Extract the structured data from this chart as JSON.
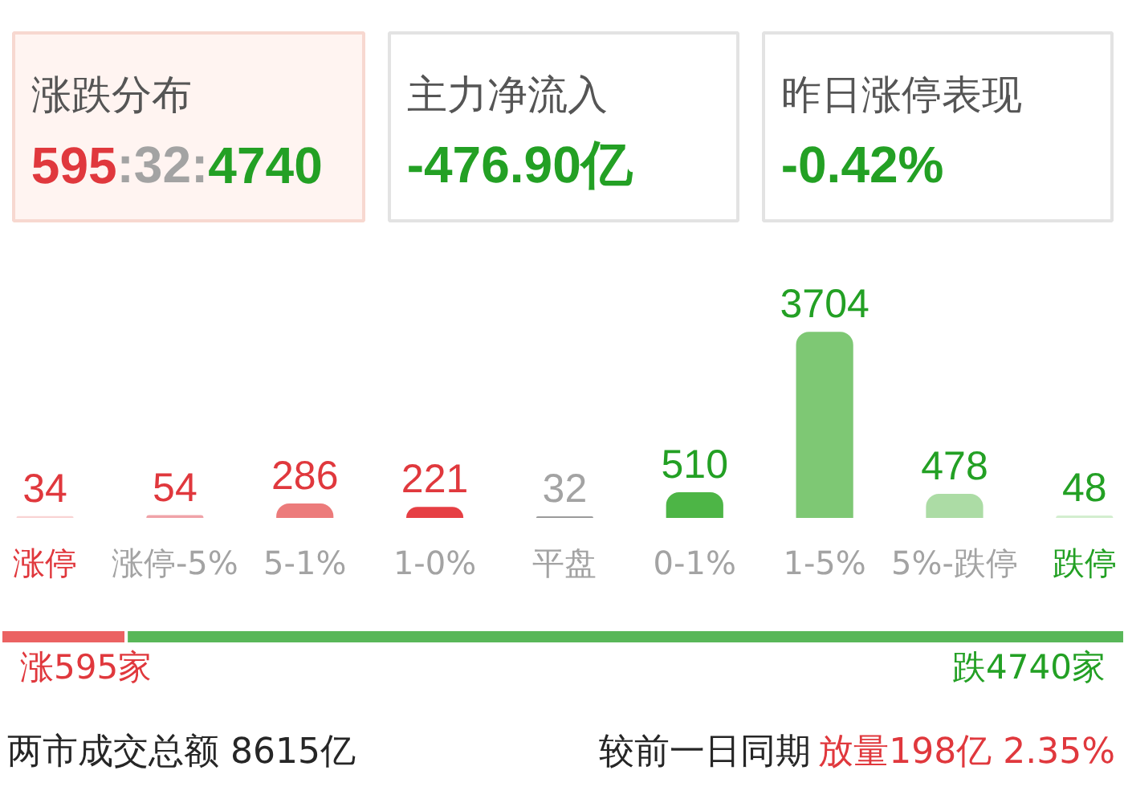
{
  "chart_data": [
    {
      "type": "other",
      "title": "涨跌分布",
      "annotations": [
        "595",
        ":32:",
        "4740"
      ]
    },
    {
      "type": "other",
      "title": "主力净流入",
      "annotations": [
        "-476.90亿"
      ]
    },
    {
      "type": "other",
      "title": "昨日涨停表现",
      "annotations": [
        "-0.42%"
      ]
    },
    {
      "type": "bar",
      "categories": [
        "涨停",
        "涨停-5%",
        "5-1%",
        "1-0%",
        "平盘",
        "0-1%",
        "1-5%",
        "5%-跌停",
        "跌停"
      ],
      "values": [
        34,
        54,
        286,
        221,
        32,
        510,
        3704,
        478,
        48
      ],
      "colors": [
        "#f9d3d3",
        "#f0a3a8",
        "#ec7b7b",
        "#e63f44",
        "#9a9a9a",
        "#4db546",
        "#7ec874",
        "#acdca5",
        "#d3eecf"
      ],
      "data_labels": true,
      "tick_labels": "x"
    },
    {
      "type": "bar",
      "orientation": "horizontal",
      "stacked": true,
      "categories": [
        null
      ],
      "series": [
        {
          "color": "#eb6262",
          "values": [
            595
          ],
          "value_labels": [
            "涨595家"
          ]
        },
        {
          "color": "#59b759",
          "values": [
            4740
          ],
          "value_labels": [
            "跌4740家"
          ]
        }
      ],
      "tick_labels": false,
      "annotations": [
        "两市成交总额 8615亿",
        "较前一日同期",
        "放量198亿 2.35%"
      ]
    }
  ]
}
